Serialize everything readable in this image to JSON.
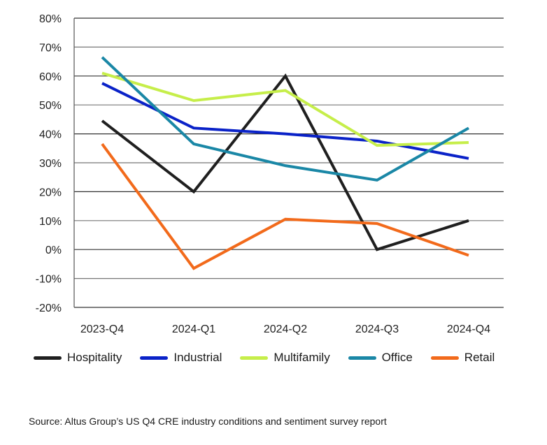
{
  "chart_data": {
    "type": "line",
    "title": "",
    "xlabel": "",
    "ylabel": "",
    "categories": [
      "2023-Q4",
      "2024-Q1",
      "2024-Q2",
      "2024-Q3",
      "2024-Q4"
    ],
    "ylim": [
      -20,
      80
    ],
    "yticks": [
      80,
      70,
      60,
      50,
      40,
      30,
      20,
      10,
      0,
      -10,
      -20
    ],
    "ytick_labels": [
      "80%",
      "70%",
      "60%",
      "50%",
      "40%",
      "30%",
      "20%",
      "10%",
      "0%",
      "-10%",
      "-20%"
    ],
    "grid": true,
    "legend_position": "bottom",
    "series": [
      {
        "name": "Hospitality",
        "color": "#1f1f1f",
        "values": [
          44.5,
          20,
          60,
          0,
          10
        ]
      },
      {
        "name": "Industrial",
        "color": "#0a22c8",
        "values": [
          57.5,
          42,
          40,
          37.5,
          31.5
        ]
      },
      {
        "name": "Multifamily",
        "color": "#c6ee4a",
        "values": [
          61,
          51.5,
          55,
          36,
          37
        ]
      },
      {
        "name": "Office",
        "color": "#1a87a6",
        "values": [
          66.5,
          36.5,
          29,
          24,
          42
        ]
      },
      {
        "name": "Retail",
        "color": "#f26a1b",
        "values": [
          36.5,
          -6.5,
          10.5,
          9,
          -2
        ]
      }
    ]
  },
  "source": "Source: Altus Group’s US Q4 CRE industry conditions and sentiment survey report"
}
